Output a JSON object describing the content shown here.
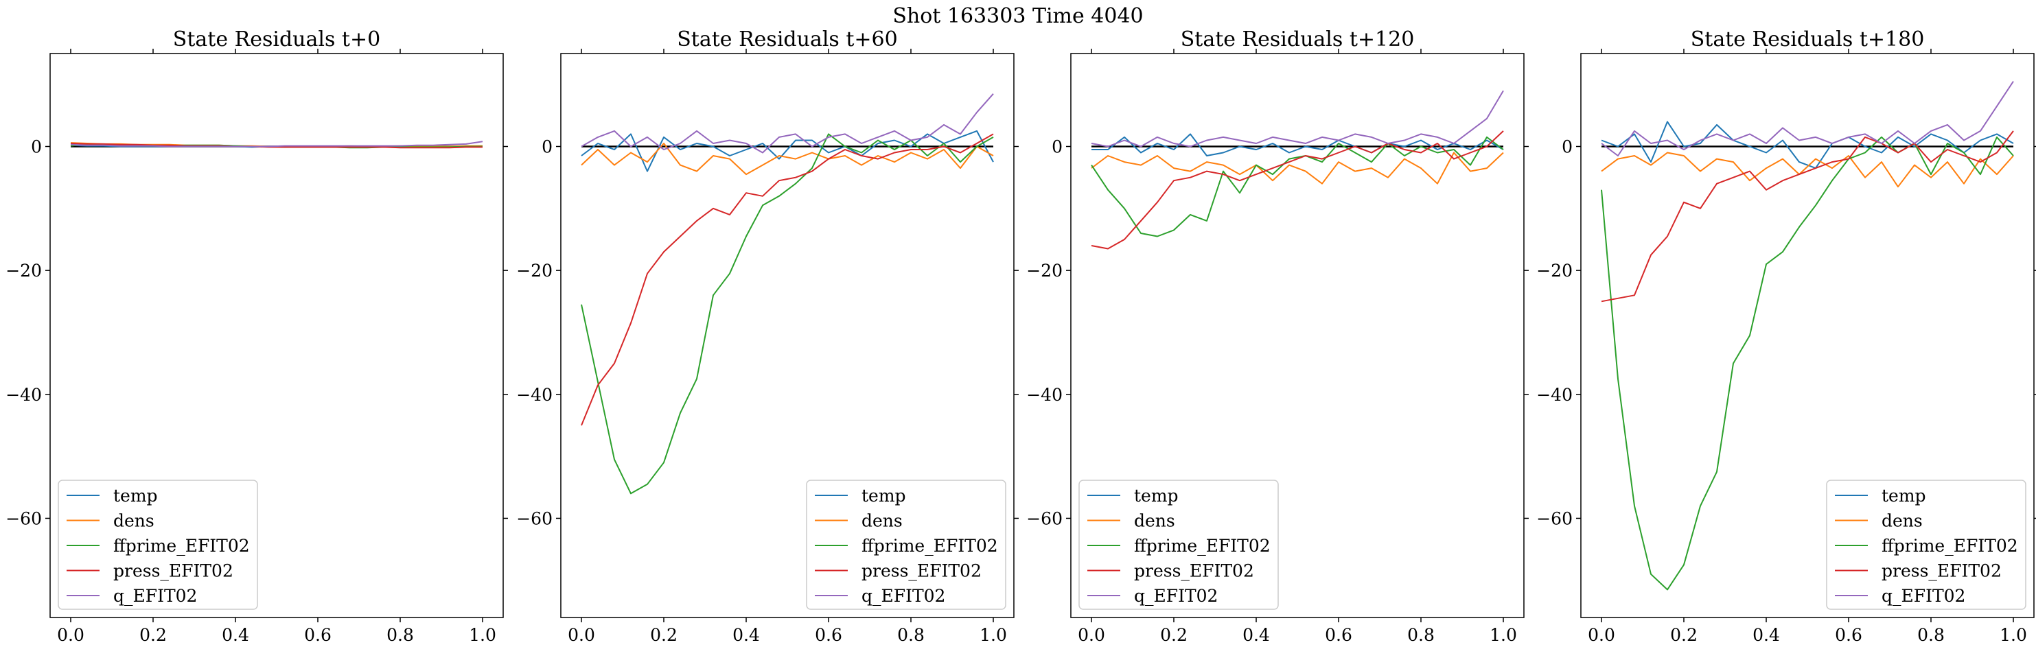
{
  "suptitle": "Shot 163303   Time 4040",
  "series_colors": {
    "temp": "#1f77b4",
    "dens": "#ff7f0e",
    "ffprime_EFIT02": "#2ca02c",
    "press_EFIT02": "#d62728",
    "q_EFIT02": "#9467bd"
  },
  "chart_data": [
    {
      "type": "line",
      "title": "State Residuals t+0",
      "xlim": [
        -0.05,
        1.05
      ],
      "ylim": [
        -76,
        15
      ],
      "xticks": [
        "0.0",
        "0.2",
        "0.4",
        "0.6",
        "0.8",
        "1.0"
      ],
      "yticks": [
        "0",
        "−20",
        "−40",
        "−60"
      ],
      "legend_loc": "lower-left",
      "x": [
        0,
        0.04,
        0.08,
        0.12,
        0.16,
        0.2,
        0.24,
        0.28,
        0.32,
        0.36,
        0.4,
        0.44,
        0.48,
        0.52,
        0.56,
        0.6,
        0.64,
        0.68,
        0.72,
        0.76,
        0.8,
        0.84,
        0.88,
        0.92,
        0.96,
        1.0
      ],
      "series": [
        {
          "name": "temp",
          "values": [
            0.2,
            0.1,
            0.1,
            0.0,
            0.0,
            0.0,
            0.0,
            0.1,
            0.0,
            0.0,
            0.0,
            -0.1,
            0.0,
            -0.1,
            0.0,
            0.0,
            -0.1,
            -0.1,
            0.0,
            0.0,
            -0.1,
            -0.1,
            0.0,
            0.0,
            0.0,
            0.1
          ]
        },
        {
          "name": "dens",
          "values": [
            0.6,
            0.5,
            0.4,
            0.4,
            0.3,
            0.3,
            0.3,
            0.2,
            0.2,
            0.2,
            0.1,
            0.1,
            0.0,
            0.0,
            0.0,
            0.0,
            0.0,
            0.1,
            0.0,
            0.0,
            0.1,
            0.0,
            0.0,
            0.0,
            0.1,
            0.1
          ]
        },
        {
          "name": "ffprime_EFIT02",
          "values": [
            0.1,
            0.4,
            0.3,
            0.2,
            0.1,
            0.1,
            0.1,
            0.2,
            0.2,
            0.2,
            0.1,
            0.0,
            0.0,
            -0.1,
            -0.1,
            -0.1,
            -0.1,
            -0.2,
            -0.2,
            -0.1,
            -0.1,
            -0.1,
            -0.1,
            -0.1,
            0.0,
            0.0
          ]
        },
        {
          "name": "press_EFIT02",
          "values": [
            0.5,
            0.4,
            0.4,
            0.3,
            0.3,
            0.2,
            0.2,
            0.1,
            0.1,
            0.1,
            0.0,
            0.0,
            -0.1,
            -0.1,
            -0.1,
            -0.1,
            -0.1,
            -0.1,
            -0.1,
            -0.1,
            -0.2,
            -0.2,
            -0.2,
            -0.2,
            -0.1,
            -0.1
          ]
        },
        {
          "name": "q_EFIT02",
          "values": [
            0.3,
            0.2,
            0.2,
            0.1,
            0.1,
            0.1,
            0.0,
            0.0,
            0.0,
            0.0,
            0.0,
            0.0,
            0.0,
            0.1,
            0.1,
            0.1,
            0.1,
            0.1,
            0.1,
            0.1,
            0.1,
            0.2,
            0.2,
            0.3,
            0.4,
            0.8
          ]
        }
      ]
    },
    {
      "type": "line",
      "title": "State Residuals t+60",
      "xlim": [
        -0.05,
        1.05
      ],
      "ylim": [
        -76,
        15
      ],
      "xticks": [
        "0.0",
        "0.2",
        "0.4",
        "0.6",
        "0.8",
        "1.0"
      ],
      "yticks": [
        "0",
        "−20",
        "−40",
        "−60"
      ],
      "legend_loc": "lower-right",
      "x": [
        0,
        0.04,
        0.08,
        0.12,
        0.16,
        0.2,
        0.24,
        0.28,
        0.32,
        0.36,
        0.4,
        0.44,
        0.48,
        0.52,
        0.56,
        0.6,
        0.64,
        0.68,
        0.72,
        0.76,
        0.8,
        0.84,
        0.88,
        0.92,
        0.96,
        1.0
      ],
      "series": [
        {
          "name": "temp",
          "values": [
            -1.5,
            0.5,
            -0.5,
            2.0,
            -4.0,
            1.5,
            -0.5,
            0.5,
            0.0,
            -1.5,
            -0.5,
            0.5,
            -2.0,
            1.0,
            1.0,
            -1.0,
            0.0,
            -1.5,
            0.5,
            1.0,
            0.0,
            2.0,
            0.5,
            1.5,
            2.5,
            -2.5
          ]
        },
        {
          "name": "dens",
          "values": [
            -3.0,
            -0.5,
            -3.0,
            -1.0,
            -2.5,
            0.5,
            -3.0,
            -4.0,
            -1.5,
            -2.0,
            -4.5,
            -3.0,
            -1.5,
            -2.0,
            -1.0,
            -2.0,
            -1.5,
            -3.0,
            -1.5,
            -2.5,
            -1.0,
            -2.0,
            -0.5,
            -3.5,
            0.0,
            -1.5
          ]
        },
        {
          "name": "ffprime_EFIT02",
          "values": [
            -25.5,
            -38.0,
            -50.5,
            -56.0,
            -54.5,
            -51.0,
            -43.0,
            -37.5,
            -24.0,
            -20.5,
            -14.5,
            -9.5,
            -8.0,
            -6.0,
            -3.5,
            2.0,
            0.0,
            -1.0,
            1.0,
            -0.5,
            1.0,
            -1.5,
            0.5,
            -2.5,
            0.0,
            1.5
          ]
        },
        {
          "name": "press_EFIT02",
          "values": [
            -45.0,
            -38.5,
            -35.0,
            -28.5,
            -20.5,
            -17.0,
            -14.5,
            -12.0,
            -10.0,
            -11.0,
            -7.5,
            -8.0,
            -5.5,
            -5.0,
            -4.0,
            -2.0,
            -0.5,
            -1.5,
            -2.0,
            -1.0,
            -0.5,
            -0.5,
            0.0,
            -1.0,
            0.5,
            2.0
          ]
        },
        {
          "name": "q_EFIT02",
          "values": [
            0.0,
            1.5,
            2.5,
            0.0,
            1.5,
            -0.5,
            0.5,
            2.5,
            0.5,
            1.0,
            0.5,
            -1.0,
            1.5,
            2.0,
            0.0,
            1.5,
            2.0,
            0.5,
            1.5,
            2.5,
            1.0,
            1.5,
            3.5,
            2.0,
            5.5,
            8.5
          ]
        }
      ]
    },
    {
      "type": "line",
      "title": "State Residuals t+120",
      "xlim": [
        -0.05,
        1.05
      ],
      "ylim": [
        -76,
        15
      ],
      "xticks": [
        "0.0",
        "0.2",
        "0.4",
        "0.6",
        "0.8",
        "1.0"
      ],
      "yticks": [
        "0",
        "−20",
        "−40",
        "−60"
      ],
      "legend_loc": "lower-left",
      "x": [
        0,
        0.04,
        0.08,
        0.12,
        0.16,
        0.2,
        0.24,
        0.28,
        0.32,
        0.36,
        0.4,
        0.44,
        0.48,
        0.52,
        0.56,
        0.6,
        0.64,
        0.68,
        0.72,
        0.76,
        0.8,
        0.84,
        0.88,
        0.92,
        0.96,
        1.0
      ],
      "series": [
        {
          "name": "temp",
          "values": [
            -0.5,
            -0.5,
            1.5,
            -1.0,
            0.5,
            -0.5,
            2.0,
            -1.5,
            -1.0,
            0.0,
            -0.5,
            0.5,
            -1.0,
            0.0,
            -0.5,
            1.0,
            0.0,
            -1.0,
            0.5,
            0.0,
            1.0,
            -0.5,
            0.5,
            -0.5,
            1.0,
            -0.5
          ]
        },
        {
          "name": "dens",
          "values": [
            -3.5,
            -1.5,
            -2.5,
            -3.0,
            -1.5,
            -3.5,
            -4.0,
            -2.5,
            -3.0,
            -4.5,
            -3.0,
            -5.5,
            -3.0,
            -4.0,
            -6.0,
            -2.5,
            -4.0,
            -3.5,
            -5.0,
            -2.0,
            -3.5,
            -6.0,
            -1.0,
            -4.0,
            -3.5,
            -1.0
          ]
        },
        {
          "name": "ffprime_EFIT02",
          "values": [
            -3.0,
            -7.0,
            -10.0,
            -14.0,
            -14.5,
            -13.5,
            -11.0,
            -12.0,
            -4.0,
            -7.5,
            -3.0,
            -4.5,
            -2.0,
            -1.5,
            -2.5,
            0.5,
            -1.0,
            -2.5,
            0.5,
            -1.5,
            0.0,
            -1.0,
            -0.5,
            -3.0,
            1.5,
            -0.5
          ]
        },
        {
          "name": "press_EFIT02",
          "values": [
            -16.0,
            -16.5,
            -15.0,
            -12.0,
            -9.0,
            -5.5,
            -5.0,
            -4.0,
            -4.5,
            -5.5,
            -4.5,
            -3.5,
            -2.5,
            -1.5,
            -2.0,
            -1.0,
            0.0,
            -1.0,
            0.5,
            -0.5,
            -1.0,
            0.5,
            -2.0,
            -1.0,
            0.0,
            2.5
          ]
        },
        {
          "name": "q_EFIT02",
          "values": [
            0.5,
            0.0,
            1.0,
            0.0,
            1.5,
            0.5,
            0.0,
            1.0,
            1.5,
            1.0,
            0.5,
            1.5,
            1.0,
            0.5,
            1.5,
            1.0,
            2.0,
            1.5,
            0.5,
            1.0,
            2.0,
            1.5,
            0.5,
            2.5,
            4.5,
            9.0
          ]
        }
      ]
    },
    {
      "type": "line",
      "title": "State Residuals t+180",
      "xlim": [
        -0.05,
        1.05
      ],
      "ylim": [
        -76,
        15
      ],
      "xticks": [
        "0.0",
        "0.2",
        "0.4",
        "0.6",
        "0.8",
        "1.0"
      ],
      "yticks": [
        "0",
        "−20",
        "−40",
        "−60"
      ],
      "legend_loc": "lower-right",
      "x": [
        0,
        0.04,
        0.08,
        0.12,
        0.16,
        0.2,
        0.24,
        0.28,
        0.32,
        0.36,
        0.4,
        0.44,
        0.48,
        0.52,
        0.56,
        0.6,
        0.64,
        0.68,
        0.72,
        0.76,
        0.8,
        0.84,
        0.88,
        0.92,
        0.96,
        1.0
      ],
      "series": [
        {
          "name": "temp",
          "values": [
            1.0,
            0.0,
            2.0,
            -2.5,
            4.0,
            0.0,
            0.5,
            3.5,
            1.0,
            0.0,
            -1.0,
            1.0,
            -2.5,
            -3.5,
            0.5,
            1.5,
            0.0,
            -1.0,
            1.5,
            0.0,
            2.0,
            1.0,
            -1.0,
            1.0,
            2.0,
            0.5
          ]
        },
        {
          "name": "dens",
          "values": [
            -4.0,
            -2.0,
            -1.5,
            -3.0,
            -1.0,
            -1.5,
            -4.0,
            -2.0,
            -2.5,
            -5.5,
            -3.5,
            -2.0,
            -4.5,
            -2.0,
            -3.5,
            -1.5,
            -5.0,
            -2.5,
            -6.5,
            -3.0,
            -5.0,
            -2.5,
            -6.0,
            -2.0,
            -4.5,
            -1.5
          ]
        },
        {
          "name": "ffprime_EFIT02",
          "values": [
            -7.0,
            -37.5,
            -58.0,
            -69.0,
            -71.5,
            -67.5,
            -58.0,
            -52.5,
            -35.0,
            -30.5,
            -19.0,
            -17.0,
            -13.0,
            -9.5,
            -5.5,
            -2.0,
            -1.0,
            1.5,
            -1.0,
            0.5,
            -4.5,
            0.5,
            -1.0,
            -4.5,
            1.5,
            -1.5
          ]
        },
        {
          "name": "press_EFIT02",
          "values": [
            -25.0,
            -24.5,
            -24.0,
            -17.5,
            -14.5,
            -9.0,
            -10.0,
            -6.0,
            -5.0,
            -4.0,
            -7.0,
            -5.5,
            -4.5,
            -3.5,
            -2.5,
            -2.0,
            1.5,
            0.5,
            -1.0,
            0.5,
            -2.5,
            -0.5,
            -1.5,
            -2.5,
            -1.0,
            2.5
          ]
        },
        {
          "name": "q_EFIT02",
          "values": [
            0.5,
            -1.5,
            2.5,
            0.5,
            1.0,
            -0.5,
            1.0,
            2.0,
            1.0,
            2.0,
            0.5,
            3.0,
            1.0,
            1.5,
            0.5,
            1.5,
            2.0,
            0.5,
            2.5,
            0.5,
            2.5,
            3.5,
            1.0,
            2.5,
            6.5,
            10.5
          ]
        }
      ]
    }
  ]
}
